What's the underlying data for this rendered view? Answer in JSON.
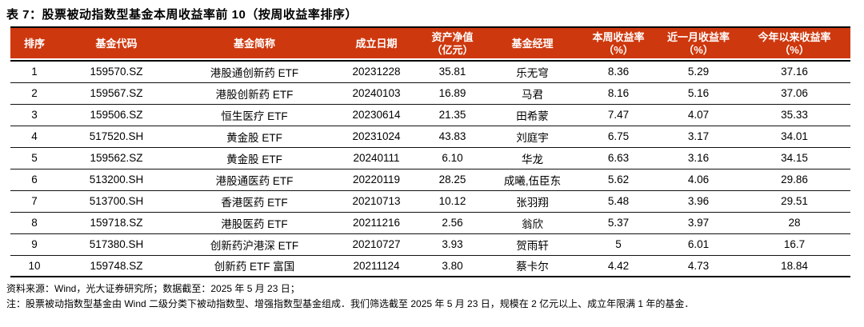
{
  "title": "表 7：股票被动指数型基金本周收益率前 10（按周收益率排序）",
  "colors": {
    "header_bg": "#CE380E",
    "header_text": "#FFFFFF",
    "title_text": "#000000",
    "border": "#000000"
  },
  "table": {
    "columns": [
      {
        "key": "rank",
        "label": "排序",
        "label2": ""
      },
      {
        "key": "code",
        "label": "基金代码",
        "label2": ""
      },
      {
        "key": "name",
        "label": "基金简称",
        "label2": ""
      },
      {
        "key": "inception",
        "label": "成立日期",
        "label2": ""
      },
      {
        "key": "nav",
        "label": "资产净值",
        "label2": "（亿元）"
      },
      {
        "key": "manager",
        "label": "基金经理",
        "label2": ""
      },
      {
        "key": "week",
        "label": "本周收益率",
        "label2": "（%）"
      },
      {
        "key": "month",
        "label": "近一月收益率",
        "label2": "（%）"
      },
      {
        "key": "ytd",
        "label": "今年以来收益率",
        "label2": "（%）"
      }
    ],
    "rows": [
      [
        "1",
        "159570.SZ",
        "港股通创新药 ETF",
        "20231228",
        "35.81",
        "乐无穹",
        "8.36",
        "5.29",
        "37.16"
      ],
      [
        "2",
        "159567.SZ",
        "港股创新药 ETF",
        "20240103",
        "16.89",
        "马君",
        "8.16",
        "5.16",
        "37.06"
      ],
      [
        "3",
        "159506.SZ",
        "恒生医疗 ETF",
        "20230614",
        "21.35",
        "田希蒙",
        "7.47",
        "4.07",
        "35.33"
      ],
      [
        "4",
        "517520.SH",
        "黄金股 ETF",
        "20231024",
        "43.83",
        "刘庭宇",
        "6.75",
        "3.17",
        "34.01"
      ],
      [
        "5",
        "159562.SZ",
        "黄金股 ETF",
        "20240111",
        "6.10",
        "华龙",
        "6.63",
        "3.16",
        "34.15"
      ],
      [
        "6",
        "513200.SH",
        "港股通医药 ETF",
        "20220119",
        "28.25",
        "成曦,伍臣东",
        "5.62",
        "4.06",
        "29.86"
      ],
      [
        "7",
        "513700.SH",
        "香港医药 ETF",
        "20210713",
        "10.12",
        "张羽翔",
        "5.48",
        "3.96",
        "29.51"
      ],
      [
        "8",
        "159718.SZ",
        "港股医药 ETF",
        "20211216",
        "2.56",
        "翁欣",
        "5.37",
        "3.97",
        "28"
      ],
      [
        "9",
        "517380.SH",
        "创新药沪港深 ETF",
        "20210727",
        "3.93",
        "贺雨轩",
        "5",
        "6.01",
        "16.7"
      ],
      [
        "10",
        "159748.SZ",
        "创新药 ETF 富国",
        "20211124",
        "3.80",
        "蔡卡尔",
        "4.42",
        "4.73",
        "18.84"
      ]
    ]
  },
  "notes": {
    "source": "资料来源：Wind，光大证券研究所；数据截至：2025 年 5 月 23 日；",
    "note": "注：股票被动指数型基金由 Wind 二级分类下被动指数型、增强指数型基金组成．我们筛选截至 2025 年 5 月 23 日，规模在 2 亿元以上、成立年限满 1 年的基金．"
  }
}
